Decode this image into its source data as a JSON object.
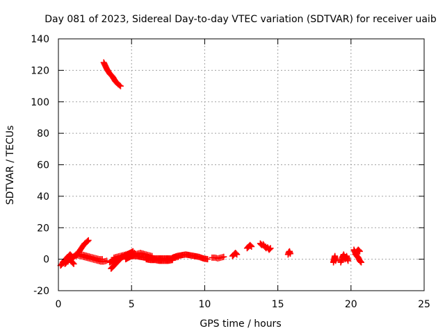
{
  "chart_data": {
    "type": "scatter",
    "title": "Day 081 of 2023, Sidereal Day-to-day VTEC variation (SDTVAR) for receiver uaib",
    "xlabel": "GPS time / hours",
    "ylabel": "SDTVAR / TECUs",
    "xlim": [
      0,
      25
    ],
    "ylim": [
      -20,
      140
    ],
    "xticks": [
      0,
      5,
      10,
      15,
      20,
      25
    ],
    "yticks": [
      -20,
      0,
      20,
      40,
      60,
      80,
      100,
      120,
      140
    ],
    "xtick_labels": [
      "0",
      "5",
      "10",
      "15",
      "20",
      "25"
    ],
    "ytick_labels": [
      "-20",
      "0",
      "20",
      "40",
      "60",
      "80",
      "100",
      "120",
      "140"
    ],
    "grid": true,
    "marker": "plus",
    "color": "#ff0000",
    "series": [
      {
        "name": "SDTVAR",
        "segments": [
          {
            "x": [
              3.1,
              3.3,
              3.5,
              3.7,
              3.9,
              4.1,
              4.25
            ],
            "y": [
              125,
              121,
              118,
              116,
              113,
              111,
              110
            ]
          },
          {
            "x": [
              0.15,
              0.25,
              0.35,
              0.45,
              0.55,
              0.65,
              0.75,
              0.85,
              0.95,
              1.05
            ],
            "y": [
              -4,
              -3,
              -2.5,
              -3,
              -2,
              -1.5,
              1,
              -1,
              -2,
              -3
            ]
          },
          {
            "x": [
              0.3,
              0.4,
              0.5,
              0.6,
              0.7,
              0.8,
              0.9,
              1.0,
              1.1,
              1.2
            ],
            "y": [
              -2,
              -1,
              0,
              1,
              2,
              3,
              2,
              1,
              2,
              3
            ]
          },
          {
            "x": [
              1.2,
              1.35,
              1.5,
              1.65,
              1.8,
              1.95,
              2.05
            ],
            "y": [
              2,
              4,
              6,
              8,
              10,
              11,
              12
            ]
          },
          {
            "x": [
              0.9,
              1.1,
              1.3,
              1.5,
              1.7,
              1.9,
              2.1,
              2.3,
              2.5,
              2.7,
              2.9,
              3.1,
              3.3
            ],
            "y": [
              1,
              2,
              2.5,
              2,
              1.5,
              1,
              0.5,
              0,
              -0.5,
              -1,
              -1.5,
              -1.5,
              -1
            ]
          },
          {
            "x": [
              1.6,
              1.8,
              2.0,
              2.2,
              2.4,
              2.6,
              2.8,
              3.0
            ],
            "y": [
              3,
              2.5,
              2,
              1.5,
              1,
              0.5,
              0,
              0
            ]
          },
          {
            "x": [
              3.6,
              3.7,
              3.8,
              3.9,
              4.0,
              4.1,
              4.2,
              4.3,
              4.4
            ],
            "y": [
              -6,
              -5,
              -4,
              -3,
              -2,
              -1,
              0,
              1,
              2
            ]
          },
          {
            "x": [
              3.5,
              3.7,
              3.9,
              4.1,
              4.3,
              4.5,
              4.7,
              4.9,
              5.1
            ],
            "y": [
              -2,
              -1,
              0,
              0.5,
              1,
              2,
              3,
              4,
              5
            ]
          },
          {
            "x": [
              3.8,
              4.0,
              4.2,
              4.4,
              4.6,
              4.8,
              5.0,
              5.2
            ],
            "y": [
              1,
              1.5,
              2,
              2.5,
              3,
              3.5,
              4,
              4
            ]
          },
          {
            "x": [
              4.6,
              4.8,
              5.0,
              5.2,
              5.4,
              5.6,
              5.8,
              6.0,
              6.2,
              6.4
            ],
            "y": [
              0,
              1,
              2,
              3,
              3.5,
              4,
              3.5,
              3,
              2.5,
              2
            ]
          },
          {
            "x": [
              5.0,
              5.3,
              5.6,
              5.9,
              6.2,
              6.5,
              6.8,
              7.1,
              7.4,
              7.7,
              8.0,
              8.2
            ],
            "y": [
              2,
              2,
              1.5,
              1,
              1,
              0.5,
              0.5,
              0.5,
              0.5,
              0.5,
              1,
              1.5
            ]
          },
          {
            "x": [
              6.0,
              6.3,
              6.6,
              6.9,
              7.2,
              7.5,
              7.8
            ],
            "y": [
              0,
              -0.5,
              -0.5,
              -1,
              -1,
              -1,
              -0.5
            ]
          },
          {
            "x": [
              7.8,
              8.1,
              8.4,
              8.7,
              9.0,
              9.3,
              9.6,
              9.9,
              10.2
            ],
            "y": [
              1,
              2,
              2.5,
              3,
              2.5,
              2,
              1.5,
              0.5,
              0
            ]
          },
          {
            "x": [
              10.5,
              10.7,
              10.9,
              11.1,
              11.3
            ],
            "y": [
              1,
              1,
              0.5,
              1,
              1.5
            ]
          },
          {
            "x": [
              11.9,
              12.0,
              12.1,
              12.2
            ],
            "y": [
              2,
              3,
              4,
              3
            ]
          },
          {
            "x": [
              12.9,
              13.0,
              13.1,
              13.2
            ],
            "y": [
              7,
              8,
              9,
              8
            ]
          },
          {
            "x": [
              13.8,
              13.9,
              14.0,
              14.1,
              14.2,
              14.3,
              14.4,
              14.5
            ],
            "y": [
              10,
              9,
              9.5,
              8,
              7,
              7.5,
              6,
              7
            ]
          },
          {
            "x": [
              15.7,
              15.75,
              15.8,
              15.85
            ],
            "y": [
              3,
              4.5,
              5,
              3.5
            ]
          },
          {
            "x": [
              18.8,
              18.85,
              18.9,
              18.95
            ],
            "y": [
              -2,
              0,
              2,
              -1
            ]
          },
          {
            "x": [
              19.3,
              19.4,
              19.5,
              19.6,
              19.7,
              19.8
            ],
            "y": [
              -2,
              1,
              3,
              0,
              2,
              -1
            ]
          },
          {
            "x": [
              20.2,
              20.3,
              20.4,
              20.5,
              20.6,
              20.7
            ],
            "y": [
              6,
              4,
              2,
              1,
              -1,
              -2
            ]
          },
          {
            "x": [
              20.3,
              20.4,
              20.5,
              20.6
            ],
            "y": [
              3,
              5,
              6,
              5
            ]
          }
        ]
      }
    ]
  }
}
